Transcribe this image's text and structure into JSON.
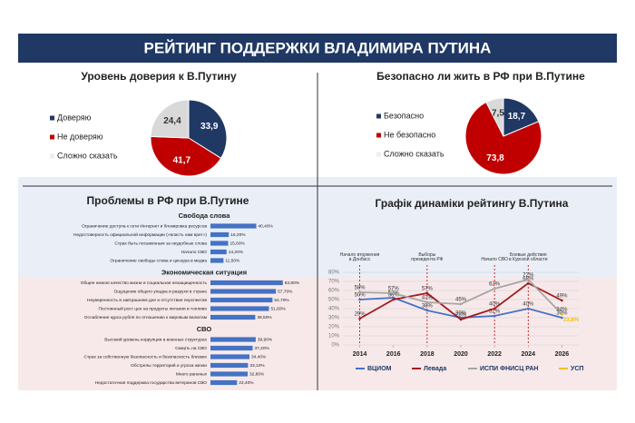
{
  "title": "РЕЙТИНГ ПОДДЕРЖКИ ВЛАДИМИРА ПУТИНА",
  "chart_data": [
    {
      "type": "pie",
      "title": "Уровень доверия к В.Путину",
      "categories": [
        "Доверяю",
        "Не доверяю",
        "Сложно сказать"
      ],
      "values": [
        33.9,
        41.7,
        24.4
      ],
      "value_labels": [
        "33,9",
        "41,7",
        "24,4"
      ],
      "colors": [
        "#1f3864",
        "#c00000",
        "#d9d9d9"
      ]
    },
    {
      "type": "pie",
      "title": "Безопасно ли жить в РФ при В.Путине",
      "categories": [
        "Безопасно",
        "Не безопасно",
        "Сложно сказать"
      ],
      "values": [
        18.7,
        73.8,
        7.5
      ],
      "value_labels": [
        "18,7",
        "73,8",
        "7,5"
      ],
      "colors": [
        "#1f3864",
        "#c00000",
        "#d9d9d9"
      ]
    },
    {
      "type": "bar",
      "orientation": "horizontal",
      "title": "Проблемы в РФ при В.Путине",
      "color": "#4472c4",
      "groups": [
        {
          "name": "Свобода слова",
          "categories": [
            "Ограничение доступа к сети Интернет и блокировка ресурсов",
            "Недостоверность официальной информации («власть нам врет»)",
            "Страх быть посаженным за неудобные слова",
            "Начало СВО",
            "Ограничение свободы слова и цензура в медиа"
          ],
          "values": [
            40.4,
            16.2,
            15.6,
            14.2,
            11.5
          ],
          "value_labels": [
            "40,40%",
            "16,20%",
            "15,60%",
            "14,20%",
            "11,50%"
          ]
        },
        {
          "name": "Экономическая ситуация",
          "categories": [
            "Общее низкое качество жизни и социальная незащищенность",
            "Ощущение общего упадка и разрухи в стране",
            "Неуверенность в завтрашнем дне и отсутствие перспектив",
            "Постоянный рост цен на продукты питания и топливо",
            "Ослабление курса рубля по отношению к мировым валютам"
          ],
          "values": [
            63.8,
            57.7,
            54.7,
            51.6,
            39.5
          ],
          "value_labels": [
            "63,80%",
            "57,70%",
            "54,70%",
            "51,60%",
            "39,50%"
          ]
        },
        {
          "name": "СВО",
          "categories": [
            "Высокий уровень коррупции в военных структурах",
            "Смерть на СВО",
            "Страх за собственную безопасность и безопасность близких",
            "Обстрелы территорий и угроза жизни",
            "Много раненых",
            "Недостаточная поддержка государства ветеранов СВО"
          ],
          "values": [
            39.9,
            37.2,
            34.4,
            33.1,
            32.8,
            23.4
          ],
          "value_labels": [
            "39,90%",
            "37,20%",
            "34,40%",
            "33,10%",
            "32,80%",
            "23,40%"
          ]
        }
      ]
    },
    {
      "type": "line",
      "title": "Графік динаміки рейтингу В.Путина",
      "x": [
        2014,
        2016,
        2018,
        2020,
        2022,
        2024,
        2026
      ],
      "xlim": [
        2013,
        2027
      ],
      "xticks": [
        2014,
        2016,
        2018,
        2020,
        2022,
        2024,
        2026
      ],
      "ylim": [
        0,
        80
      ],
      "yticks": [
        {
          "value": 0,
          "label": "0%"
        },
        {
          "value": 10,
          "label": "10%"
        },
        {
          "value": 20,
          "label": "20%"
        },
        {
          "value": 30,
          "label": "30%"
        },
        {
          "value": 40,
          "label": "40%"
        },
        {
          "value": 50,
          "label": "50%"
        },
        {
          "value": 60,
          "label": "60%"
        },
        {
          "value": 70,
          "label": "70%"
        },
        {
          "value": 80,
          "label": "80%"
        }
      ],
      "grid": true,
      "annotations": [
        {
          "x": 2014,
          "text": "Начало вторжения в Донбасс"
        },
        {
          "x": 2018,
          "text": "Выборы президента РФ"
        },
        {
          "x": 2022,
          "text": "Начало СВО"
        },
        {
          "x": 2024,
          "text": "Боевые действия в Курской области"
        }
      ],
      "series": [
        {
          "name": "ВЦИОМ",
          "color": "#4472c4",
          "values": [
            50,
            52,
            38,
            30,
            32,
            40,
            30
          ],
          "value_labels": [
            "50%",
            "52%",
            "38%",
            "30%",
            "32%",
            "40%",
            "30%"
          ]
        },
        {
          "name": "Левада",
          "color": "#a31b1b",
          "values": [
            29,
            50,
            57,
            28,
            40,
            68,
            49
          ],
          "value_labels": [
            "29%",
            "50%",
            "57%",
            "28%",
            "40%",
            "68%",
            "49%"
          ]
        },
        {
          "name": "ИСПИ ФНИСЦ РАН",
          "color": "#a6a6a6",
          "values": [
            58,
            57,
            47,
            45,
            62,
            72,
            34
          ],
          "value_labels": [
            "58%",
            "57%",
            "47%",
            "45%",
            "62%",
            "72%",
            "34%"
          ]
        },
        {
          "name": "УСП",
          "color": "#f2c200",
          "values": [
            null,
            null,
            null,
            null,
            null,
            null,
            33.8
          ],
          "value_labels": [
            null,
            null,
            null,
            null,
            null,
            null,
            "33,8%"
          ]
        }
      ]
    }
  ]
}
